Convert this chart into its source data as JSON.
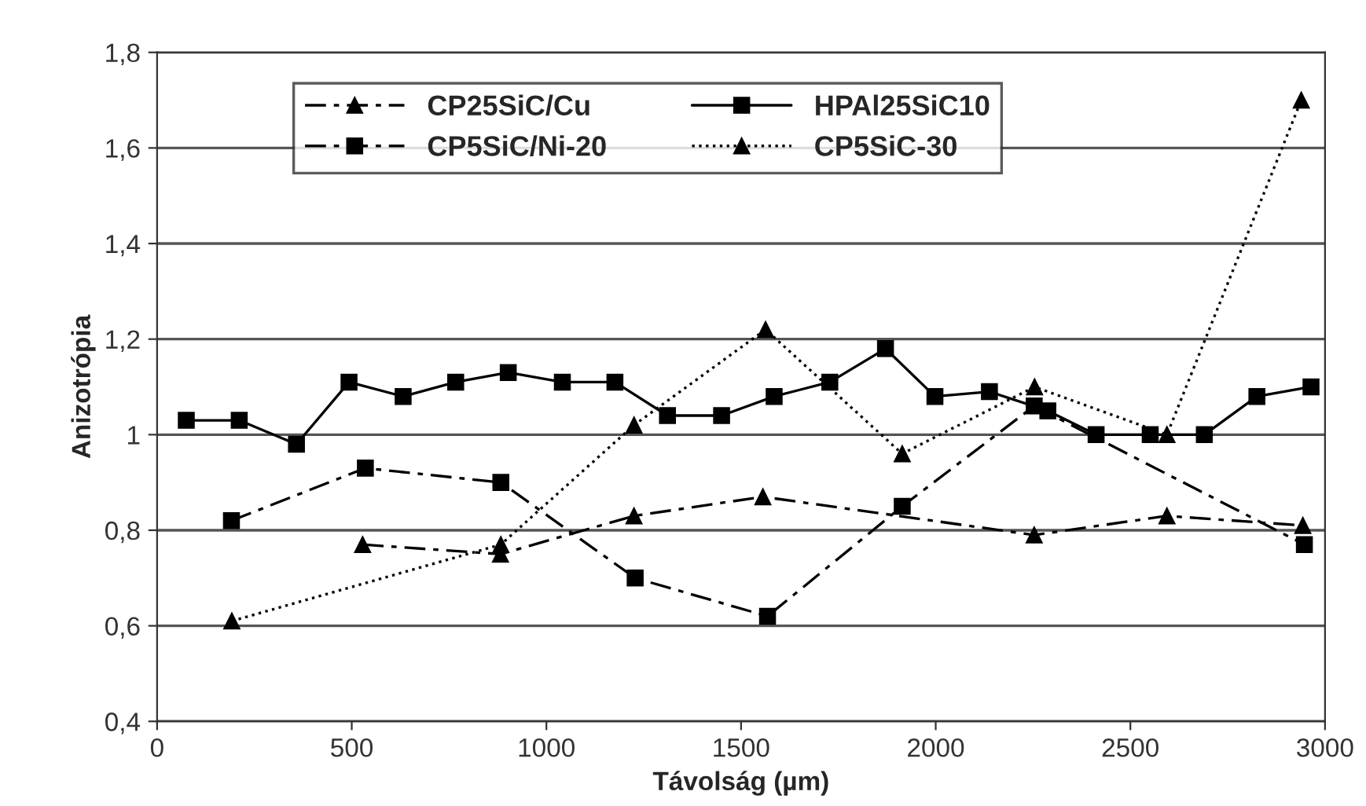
{
  "chart_data": {
    "type": "line",
    "xlabel": "Távolság (µm)",
    "ylabel": "Anizotrópia",
    "xlim": [
      0,
      3000
    ],
    "xticks": [
      0,
      500,
      1000,
      1500,
      2000,
      2500,
      3000
    ],
    "ylim": [
      0.4,
      1.8
    ],
    "yticks": [
      {
        "value": 0.4,
        "label": "0,4"
      },
      {
        "value": 0.6,
        "label": "0,6"
      },
      {
        "value": 0.8,
        "label": "0,8"
      },
      {
        "value": 1,
        "label": "1"
      },
      {
        "value": 1.2,
        "label": "1,2"
      },
      {
        "value": 1.4,
        "label": "1,4"
      },
      {
        "value": 1.6,
        "label": "1,6"
      },
      {
        "value": 1.8,
        "label": "1,8"
      }
    ],
    "grid": "y",
    "legend": "top",
    "series": [
      {
        "name": "CP25SiC/Cu",
        "color": "#000000",
        "marker": "triangle",
        "line_style": "dashed",
        "x": [
          528,
          882,
          1225,
          1556,
          2253,
          2594,
          2943
        ],
        "values": [
          0.77,
          0.75,
          0.83,
          0.87,
          0.79,
          0.83,
          0.81
        ]
      },
      {
        "name": "HPAl25SiC10",
        "color": "#000000",
        "marker": "square",
        "line_style": "solid",
        "x": [
          75,
          211,
          358,
          493,
          632,
          767,
          902,
          1041,
          1176,
          1311,
          1450,
          1585,
          1728,
          1871,
          1998,
          2138,
          2288,
          2412,
          2551,
          2690,
          2825,
          2964
        ],
        "values": [
          1.03,
          1.03,
          0.98,
          1.11,
          1.08,
          1.11,
          1.13,
          1.11,
          1.11,
          1.04,
          1.04,
          1.08,
          1.11,
          1.18,
          1.08,
          1.09,
          1.05,
          1.0,
          1.0,
          1.0,
          1.08,
          1.1
        ]
      },
      {
        "name": "CP5SiC/Ni-20",
        "color": "#000000",
        "marker": "square",
        "line_style": "dashed",
        "x": [
          191,
          535,
          883,
          1228,
          1568,
          1914,
          2253,
          2947
        ],
        "values": [
          0.82,
          0.93,
          0.9,
          0.7,
          0.62,
          0.85,
          1.06,
          0.77
        ]
      },
      {
        "name": "CP5SiC-30",
        "color": "#000000",
        "marker": "triangle",
        "line_style": "dotted",
        "x": [
          192,
          883,
          1225,
          1563,
          1914,
          2254,
          2594,
          2939
        ],
        "values": [
          0.61,
          0.77,
          1.02,
          1.22,
          0.96,
          1.1,
          1.0,
          1.7
        ]
      }
    ]
  }
}
